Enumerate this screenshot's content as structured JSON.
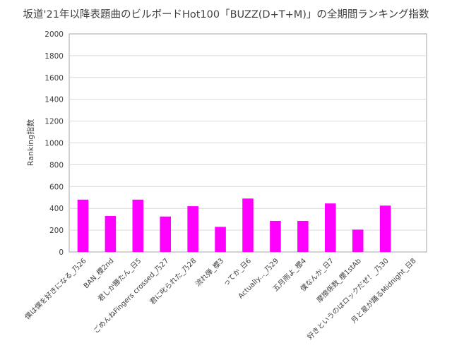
{
  "chart_data": {
    "type": "bar",
    "title": "坂道'21年以降表題曲のビルボードHot100「BUZZ(D+T+M)」の全期間ランキング指数",
    "xlabel": "",
    "ylabel": "Ranking指数",
    "ylim": [
      0,
      2000
    ],
    "yticks": [
      0,
      200,
      400,
      600,
      800,
      1000,
      1200,
      1400,
      1600,
      1800,
      2000
    ],
    "grid": true,
    "legend": "none",
    "bar_color": "#ff00ff",
    "categories": [
      "僕は僕を好きになる_乃26",
      "BAN_櫻2nd",
      "君しか勝たん_日5",
      "ごめんねFingers crossed_乃27",
      "君に叱られた_乃28",
      "流れ弾_櫻3",
      "ってか_日6",
      "Actually..._乃29",
      "五月雨よ_櫻4",
      "僕なんか_日7",
      "摩擦係数_櫻1stAb",
      "好きというのはロックだぜ！_乃30",
      "月と星が踊るMidnight_日8"
    ],
    "values": [
      480,
      330,
      480,
      325,
      420,
      230,
      490,
      285,
      285,
      445,
      205,
      425,
      0
    ]
  }
}
